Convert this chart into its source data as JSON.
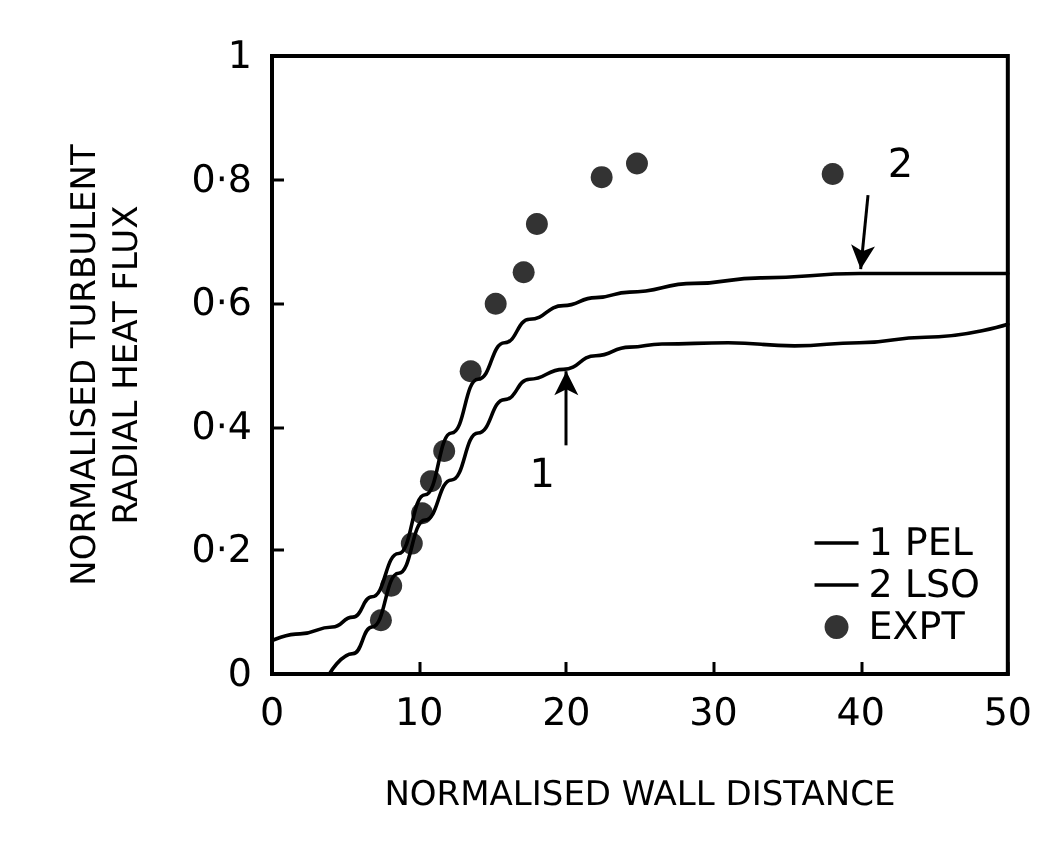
{
  "chart_data": {
    "type": "line",
    "xlabel": "NORMALISED WALL DISTANCE",
    "ylabel": "NORMALISED TURBULENT\nRADIAL HEAT FLUX",
    "xlim": [
      0,
      50
    ],
    "xticks": [
      0,
      10,
      20,
      30,
      40,
      50
    ],
    "ylim": [
      0,
      1
    ],
    "yticks": [
      0,
      {
        "value": 0.2,
        "label": "0·2"
      },
      {
        "value": 0.4,
        "label": "0·4"
      },
      {
        "value": 0.6,
        "label": "0·6"
      },
      {
        "value": 0.8,
        "label": "0·8"
      },
      1
    ],
    "grid": false,
    "legend": "bottom right",
    "series": [
      {
        "name": "1 PEL",
        "color": "#000000",
        "marker": "none",
        "line_style": "solid",
        "x": [
          3.9,
          5.5,
          6.8,
          8.6,
          10.4,
          12.2,
          14,
          15.8,
          17.5,
          19.8,
          22,
          24.3,
          26.5,
          31,
          35.5,
          39.9,
          44.4,
          50
        ],
        "values": [
          0,
          0.033,
          0.076,
          0.163,
          0.249,
          0.314,
          0.39,
          0.444,
          0.477,
          0.493,
          0.515,
          0.529,
          0.534,
          0.536,
          0.531,
          0.536,
          0.545,
          0.566
        ]
      },
      {
        "name": "2 LSO",
        "color": "#000000",
        "marker": "none",
        "line_style": "solid",
        "x": [
          0,
          1.9,
          4.1,
          5.5,
          6.8,
          8.6,
          10.4,
          12.2,
          14,
          15.8,
          17.5,
          19.8,
          22,
          24.3,
          28.7,
          33.2,
          39.9,
          44.4,
          50
        ],
        "values": [
          0.054,
          0.065,
          0.076,
          0.092,
          0.125,
          0.195,
          0.29,
          0.39,
          0.477,
          0.536,
          0.574,
          0.596,
          0.609,
          0.618,
          0.632,
          0.641,
          0.648,
          0.648,
          0.648
        ]
      },
      {
        "name": "EXPT",
        "type": "scatter",
        "color": "#000000",
        "marker": "circle",
        "x": [
          7.4,
          8.1,
          9.5,
          10.2,
          10.8,
          11.7,
          13.5,
          15.2,
          17.1,
          18,
          22.4,
          24.8,
          38.1
        ],
        "values": [
          0.087,
          0.143,
          0.211,
          0.26,
          0.312,
          0.361,
          0.49,
          0.599,
          0.65,
          0.728,
          0.804,
          0.826,
          0.809
        ]
      }
    ],
    "annotations": [
      {
        "text": "1",
        "x": 20,
        "y": 0.49
      },
      {
        "text": "2",
        "x": 40,
        "y": 0.655
      }
    ]
  }
}
